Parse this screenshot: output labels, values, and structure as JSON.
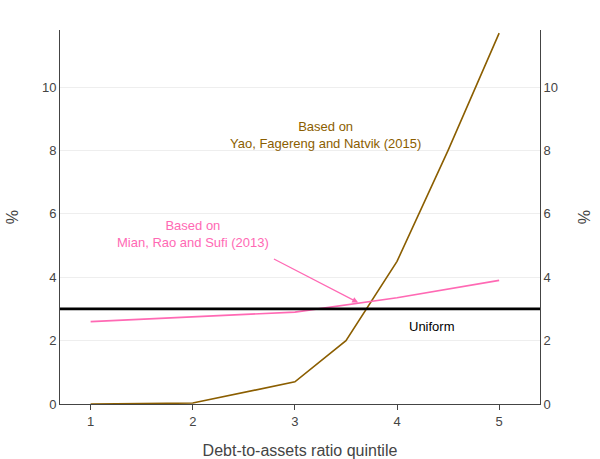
{
  "chart_data": {
    "type": "line",
    "xlabel": "Debt-to-assets ratio quintile",
    "ylabel": "%",
    "y2label": "%",
    "xlim": [
      0.7,
      5.4
    ],
    "xticks": [
      1,
      2,
      3,
      4,
      5
    ],
    "ylim": [
      0,
      11.8
    ],
    "yticks": [
      0,
      2,
      4,
      6,
      8,
      10
    ],
    "y2lim": [
      0,
      11.8
    ],
    "y2ticks": [
      0,
      2,
      4,
      6,
      8,
      10
    ],
    "grid": true,
    "series": [
      {
        "x": [
          1,
          2,
          3,
          3.5,
          4,
          4.5,
          5
        ],
        "values": [
          0.0,
          0.03,
          0.7,
          2.0,
          4.5,
          8.0,
          11.7
        ],
        "color": "#8B5E00"
      },
      {
        "x": [
          1,
          2,
          3,
          4,
          5
        ],
        "values": [
          2.6,
          2.75,
          2.9,
          3.35,
          3.9
        ],
        "color": "#FF69B4"
      },
      {
        "x": [
          0.7,
          5.4
        ],
        "values": [
          3.0,
          3.0
        ],
        "color": "#000000"
      }
    ],
    "annotations": [
      {
        "text": "Based on\nYao, Fagereng and Natvik (2015)",
        "x": 3.3,
        "y": 8.5,
        "color": "#8B5E00",
        "align": "center"
      },
      {
        "text": "Based on\nMian, Rao and Sufi (2013)",
        "x": 2.0,
        "y": 5.35,
        "color": "#FF69B4",
        "align": "center"
      },
      {
        "text": "Uniform",
        "x": 4.1,
        "y": 2.45,
        "color": "#000000",
        "align": "left"
      }
    ],
    "arrows": [
      {
        "x_start": 2.78,
        "y_start": 4.6,
        "x_end": 3.62,
        "y_end": 3.2,
        "color": "#FF69B4"
      }
    ]
  }
}
